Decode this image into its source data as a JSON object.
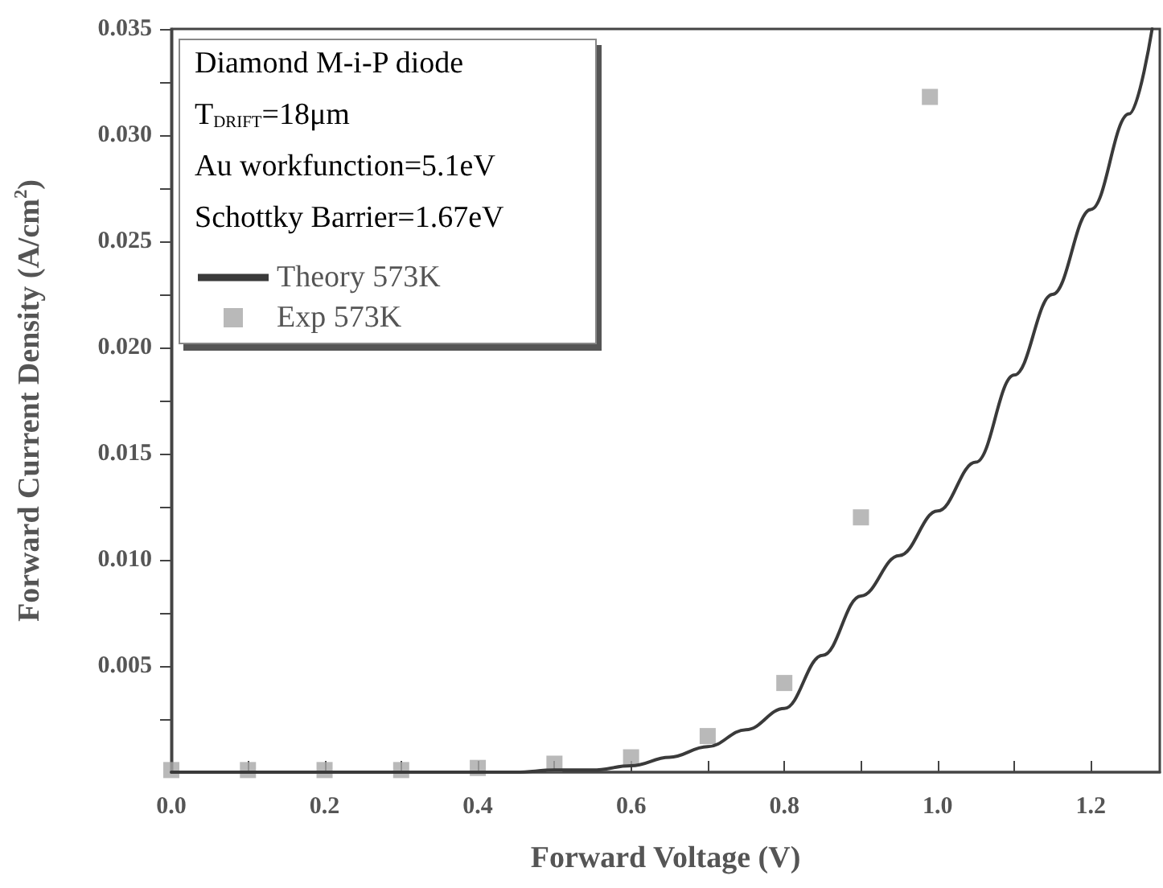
{
  "chart_data": {
    "type": "scatter",
    "xlabel": "Forward Voltage (V)",
    "ylabel": "Forward Current Density (A/cm$^{2}$)",
    "annotations": [
      "Diamond M-i-P diode",
      "T$_{DRIFT}$=18μm",
      "Au workfunction=5.1eV",
      "Schottky Barrier=1.67eV"
    ],
    "series": [
      {
        "name": "Theory 573K",
        "type": "line",
        "color": "#3a3a3a",
        "marker": "none",
        "line_style": "solid",
        "x": [
          0,
          0.3,
          0.45,
          0.5,
          0.55,
          0.6,
          0.65,
          0.7,
          0.75,
          0.8,
          0.85,
          0.9,
          0.95,
          1.0,
          1.05,
          1.1,
          1.15,
          1.2,
          1.25,
          1.28
        ],
        "values": [
          0,
          0,
          0,
          0.0001,
          0.0001,
          0.0003,
          0.0007,
          0.0012,
          0.002,
          0.003,
          0.0055,
          0.0083,
          0.0102,
          0.0123,
          0.0146,
          0.0187,
          0.0225,
          0.0265,
          0.031,
          0.035
        ]
      },
      {
        "name": "Exp 573K",
        "type": "scatter",
        "color": "#a8a8a8",
        "marker": "square",
        "x": [
          0,
          0.1,
          0.2,
          0.3,
          0.4,
          0.5,
          0.6,
          0.7,
          0.8,
          0.9,
          0.99
        ],
        "values": [
          0.0001,
          0.0001,
          0.0001,
          0.0001,
          0.0002,
          0.0004,
          0.0007,
          0.0017,
          0.0042,
          0.012,
          0.0318
        ]
      }
    ],
    "xlim": [
      0,
      1.29
    ],
    "xticks": [
      {
        "value": 0,
        "label": "0.0"
      },
      {
        "value": 0.1,
        "label": null
      },
      {
        "value": 0.2,
        "label": "0.2"
      },
      {
        "value": 0.3,
        "label": null
      },
      {
        "value": 0.4,
        "label": "0.4"
      },
      {
        "value": 0.5,
        "label": null
      },
      {
        "value": 0.6,
        "label": "0.6"
      },
      {
        "value": 0.7,
        "label": null
      },
      {
        "value": 0.8,
        "label": "0.8"
      },
      {
        "value": 0.9,
        "label": null
      },
      {
        "value": 1.0,
        "label": "1.0"
      },
      {
        "value": 1.1,
        "label": null
      },
      {
        "value": 1.2,
        "label": "1.2"
      }
    ],
    "ylim": [
      0,
      0.035
    ],
    "yticks": [
      {
        "value": 0.0025,
        "label": null
      },
      0.005,
      {
        "value": 0.0075,
        "label": null
      },
      {
        "value": 0.01,
        "label": "0.010"
      },
      {
        "value": 0.0125,
        "label": null
      },
      0.015,
      {
        "value": 0.0175,
        "label": null
      },
      {
        "value": 0.02,
        "label": "0.020"
      },
      {
        "value": 0.0225,
        "label": null
      },
      0.025,
      {
        "value": 0.0275,
        "label": null
      },
      {
        "value": 0.03,
        "label": "0.030"
      },
      {
        "value": 0.0325,
        "label": null
      },
      0.035
    ],
    "grid": false,
    "legend": "top left"
  }
}
